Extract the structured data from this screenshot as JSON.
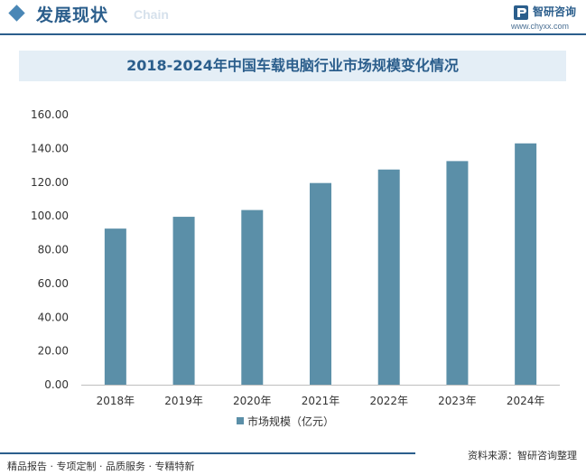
{
  "header": {
    "title": "发展现状",
    "subtitle": "Chain",
    "logo_name": "智研咨询",
    "logo_url": "www.chyxx.com"
  },
  "colors": {
    "accent": "#2b5e8c",
    "bar": "#5b8fa8",
    "title_bg": "#e4eef6"
  },
  "footer": {
    "left": "精品报告 · 专项定制 · 品质服务 · 专精特新",
    "right": "资料来源：智研咨询整理"
  },
  "chart_data": {
    "type": "bar",
    "title": "2018-2024年中国车载电脑行业市场规模变化情况",
    "categories": [
      "2018年",
      "2019年",
      "2020年",
      "2021年",
      "2022年",
      "2023年",
      "2024年"
    ],
    "series": [
      {
        "name": "市场规模（亿元）",
        "values": [
          92.5,
          99.5,
          103.5,
          119.5,
          127.5,
          132.5,
          143
        ]
      }
    ],
    "yticks": [
      "0.00",
      "20.00",
      "40.00",
      "60.00",
      "80.00",
      "100.00",
      "120.00",
      "140.00",
      "160.00"
    ],
    "ylim": [
      0,
      160
    ],
    "legend_position": "bottom",
    "grid": false
  }
}
